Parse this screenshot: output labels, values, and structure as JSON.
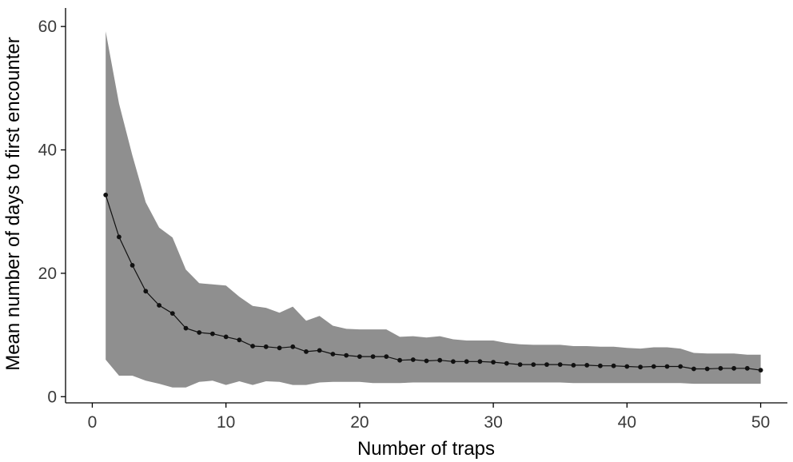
{
  "chart_data": {
    "type": "line",
    "title": "",
    "xlabel": "Number of traps",
    "ylabel": "Mean number of days to first encounter",
    "xlim": [
      -2,
      52
    ],
    "ylim": [
      -1,
      63
    ],
    "xticks": [
      0,
      10,
      20,
      30,
      40,
      50
    ],
    "yticks": [
      0,
      20,
      40,
      60
    ],
    "x_tick_labels": [
      "0",
      "10",
      "20",
      "30",
      "40",
      "50"
    ],
    "y_tick_labels": [
      "0",
      "20",
      "40",
      "60"
    ],
    "grid": false,
    "legend": "none",
    "colors": {
      "band": "#8f8f8f",
      "line": "#111111",
      "points": "#111111"
    },
    "series": [
      {
        "x": [
          1,
          2,
          3,
          4,
          5,
          6,
          7,
          8,
          9,
          10,
          11,
          12,
          13,
          14,
          15,
          16,
          17,
          18,
          19,
          20,
          21,
          22,
          23,
          24,
          25,
          26,
          27,
          28,
          29,
          30,
          31,
          32,
          33,
          34,
          35,
          36,
          37,
          38,
          39,
          40,
          41,
          42,
          43,
          44,
          45,
          46,
          47,
          48,
          49,
          50
        ],
        "mean": [
          32.7,
          25.9,
          21.3,
          17.1,
          14.8,
          13.5,
          11.1,
          10.4,
          10.2,
          9.7,
          9.2,
          8.2,
          8.1,
          7.9,
          8.1,
          7.3,
          7.5,
          6.9,
          6.7,
          6.5,
          6.5,
          6.5,
          5.9,
          6.0,
          5.8,
          5.9,
          5.7,
          5.7,
          5.7,
          5.6,
          5.4,
          5.2,
          5.2,
          5.2,
          5.2,
          5.1,
          5.1,
          5.0,
          5.0,
          4.9,
          4.8,
          4.9,
          4.9,
          4.9,
          4.5,
          4.5,
          4.6,
          4.6,
          4.6,
          4.3
        ],
        "lower": [
          6.0,
          3.4,
          3.4,
          2.6,
          2.1,
          1.5,
          1.5,
          2.4,
          2.6,
          1.9,
          2.5,
          1.9,
          2.5,
          2.4,
          1.9,
          1.9,
          2.3,
          2.4,
          2.4,
          2.4,
          2.2,
          2.2,
          2.2,
          2.3,
          2.3,
          2.3,
          2.3,
          2.3,
          2.3,
          2.3,
          2.3,
          2.3,
          2.3,
          2.3,
          2.3,
          2.2,
          2.2,
          2.2,
          2.2,
          2.2,
          2.2,
          2.2,
          2.2,
          2.2,
          2.1,
          2.1,
          2.1,
          2.1,
          2.1,
          2.1
        ],
        "upper": [
          59.2,
          47.5,
          39.1,
          31.5,
          27.4,
          25.8,
          20.6,
          18.4,
          18.2,
          18.0,
          16.2,
          14.7,
          14.4,
          13.6,
          14.6,
          12.3,
          13.1,
          11.5,
          11.0,
          10.9,
          10.9,
          10.9,
          9.7,
          9.8,
          9.6,
          9.8,
          9.3,
          9.1,
          9.1,
          9.1,
          8.7,
          8.5,
          8.4,
          8.4,
          8.4,
          8.2,
          8.2,
          8.1,
          8.1,
          7.9,
          7.8,
          8.0,
          8.0,
          7.8,
          7.1,
          7.0,
          7.0,
          7.0,
          6.8,
          6.8
        ]
      }
    ]
  }
}
